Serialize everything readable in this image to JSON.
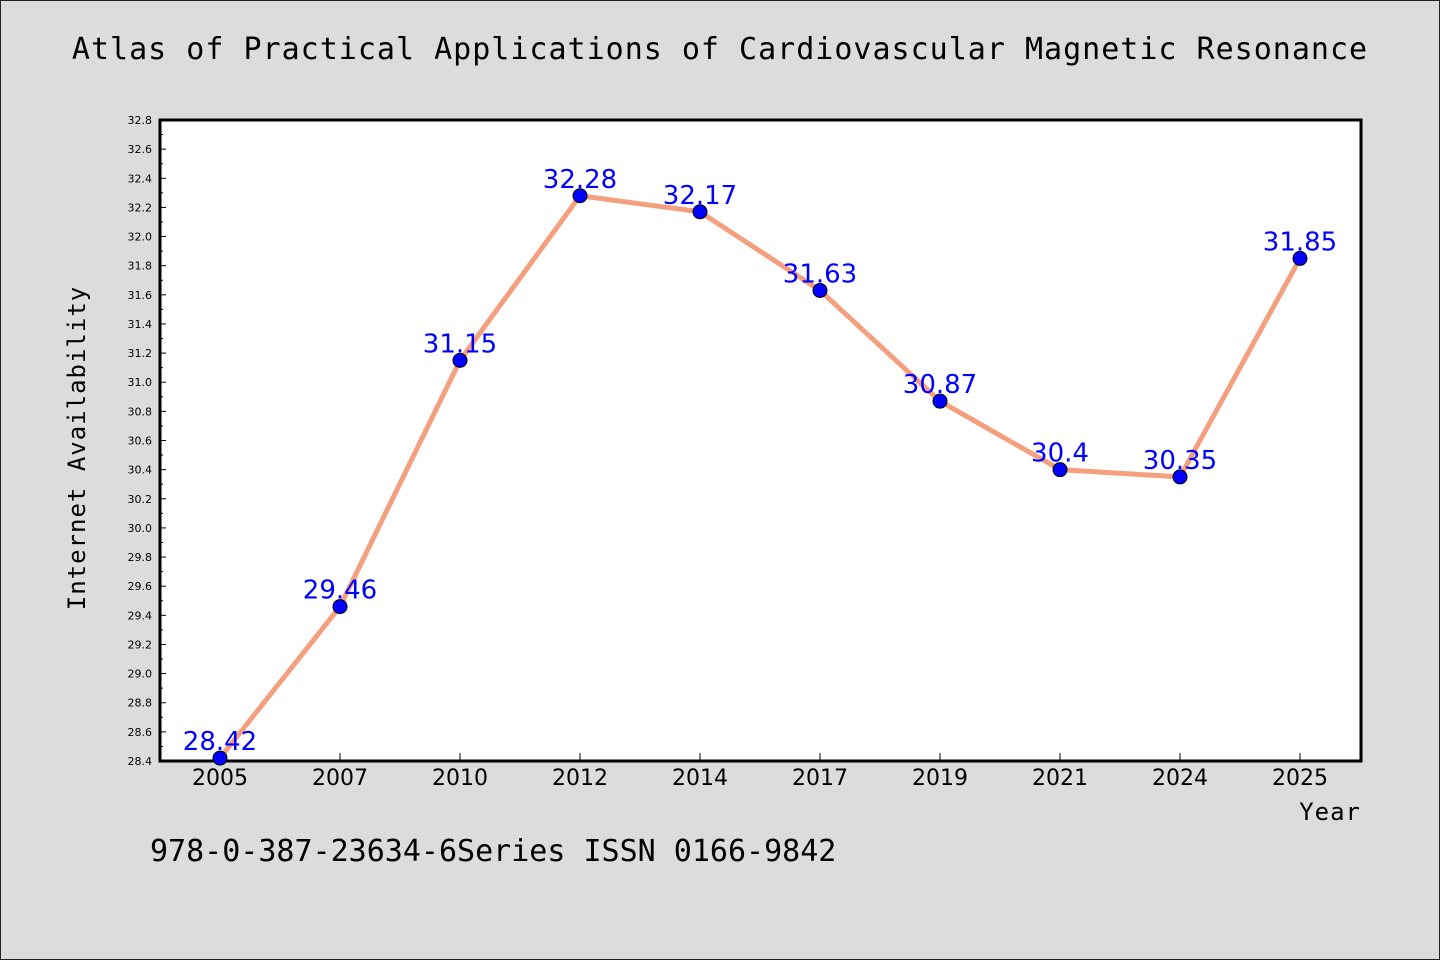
{
  "chart_data": {
    "type": "line",
    "title": "Atlas of Practical Applications of Cardiovascular Magnetic Resonance",
    "xlabel": "Year",
    "ylabel": "Internet Availability",
    "categories": [
      "2005",
      "2007",
      "2010",
      "2012",
      "2014",
      "2017",
      "2019",
      "2021",
      "2024",
      "2025"
    ],
    "values": [
      28.42,
      29.46,
      31.15,
      32.28,
      32.17,
      31.63,
      30.87,
      30.4,
      30.35,
      31.85
    ],
    "ylim": [
      28.4,
      32.8
    ],
    "yticks": [
      "28.4",
      "28.6",
      "28.8",
      "29.0",
      "29.2",
      "29.4",
      "29.6",
      "29.8",
      "30.0",
      "30.2",
      "30.4",
      "30.6",
      "30.8",
      "31.0",
      "31.2",
      "31.4",
      "31.6",
      "31.8",
      "32.0",
      "32.2",
      "32.4",
      "32.6",
      "32.8"
    ],
    "grid": false,
    "data_labels": true,
    "colors": {
      "line": "#f4a07f",
      "marker": "#0000ff",
      "label": "#0000ff",
      "background": "#dcdcdc",
      "plot": "#ffffff"
    }
  },
  "footer": {
    "text": "978-0-387-23634-6Series ISSN 0166-9842"
  }
}
